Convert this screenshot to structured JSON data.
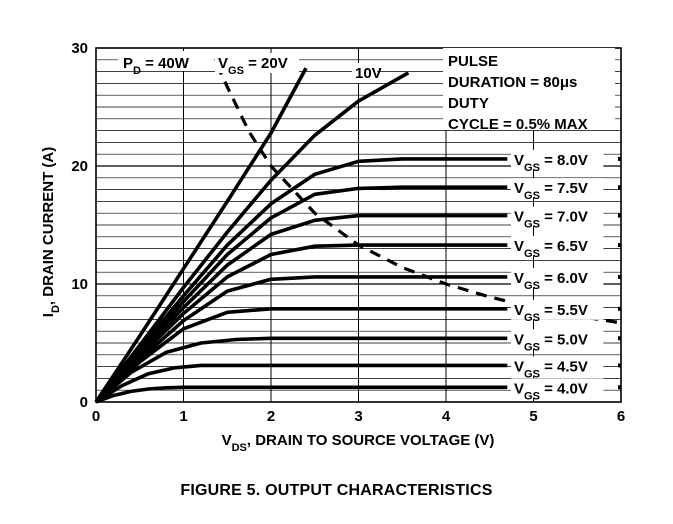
{
  "caption": "FIGURE 5.  OUTPUT CHARACTERISTICS",
  "chart_data": {
    "type": "line",
    "xlabel": "V_DS, DRAIN TO SOURCE VOLTAGE (V)",
    "ylabel": "I_D, DRAIN CURRENT (A)",
    "xlim": [
      0,
      6
    ],
    "ylim": [
      0,
      30
    ],
    "xticks": [
      0,
      1,
      2,
      3,
      4,
      5,
      6
    ],
    "yticks": [
      0,
      10,
      20,
      30
    ],
    "grid": true,
    "annotations": {
      "pulse": [
        "PULSE",
        "DURATION = 80μs",
        "DUTY",
        "CYCLE = 0.5% MAX"
      ],
      "pd_label": "P_D = 40W"
    },
    "series": [
      {
        "name": "V_GS = 20V",
        "label": "V_GS = 20V",
        "style": "solid",
        "points": [
          [
            0,
            0
          ],
          [
            0.5,
            5.6
          ],
          [
            1,
            11.3
          ],
          [
            1.5,
            17.0
          ],
          [
            2,
            22.8
          ],
          [
            2.4,
            28.3
          ]
        ]
      },
      {
        "name": "10V",
        "label": "10V",
        "style": "solid",
        "points": [
          [
            0,
            0
          ],
          [
            0.5,
            4.8
          ],
          [
            1,
            9.7
          ],
          [
            1.5,
            14.4
          ],
          [
            2,
            18.8
          ],
          [
            2.5,
            22.6
          ],
          [
            3,
            25.5
          ],
          [
            3.57,
            27.9
          ]
        ]
      },
      {
        "name": "V_GS = 8.0V",
        "label": "V_GS = 8.0V",
        "style": "solid",
        "points": [
          [
            0,
            0
          ],
          [
            0.5,
            4.5
          ],
          [
            1,
            9.0
          ],
          [
            1.5,
            13.3
          ],
          [
            2,
            16.8
          ],
          [
            2.5,
            19.3
          ],
          [
            3,
            20.4
          ],
          [
            3.5,
            20.6
          ],
          [
            4.7,
            20.6
          ]
        ]
      },
      {
        "name": "V_GS = 7.5V",
        "label": "V_GS = 7.5V",
        "style": "solid",
        "points": [
          [
            0,
            0
          ],
          [
            0.5,
            4.3
          ],
          [
            1,
            8.5
          ],
          [
            1.5,
            12.5
          ],
          [
            2,
            15.6
          ],
          [
            2.5,
            17.6
          ],
          [
            3,
            18.1
          ],
          [
            3.5,
            18.2
          ],
          [
            4.7,
            18.2
          ]
        ]
      },
      {
        "name": "V_GS = 7.0V",
        "label": "V_GS = 7.0V",
        "style": "solid",
        "points": [
          [
            0,
            0
          ],
          [
            0.5,
            4.1
          ],
          [
            1,
            8.0
          ],
          [
            1.5,
            11.6
          ],
          [
            2,
            14.2
          ],
          [
            2.5,
            15.4
          ],
          [
            3,
            15.8
          ],
          [
            4.7,
            15.8
          ]
        ]
      },
      {
        "name": "V_GS = 6.5V",
        "label": "V_GS = 6.5V",
        "style": "solid",
        "points": [
          [
            0,
            0
          ],
          [
            0.5,
            3.9
          ],
          [
            1,
            7.5
          ],
          [
            1.5,
            10.6
          ],
          [
            2,
            12.5
          ],
          [
            2.5,
            13.2
          ],
          [
            3,
            13.3
          ],
          [
            4.7,
            13.3
          ]
        ]
      },
      {
        "name": "V_GS = 6.0V",
        "label": "V_GS = 6.0V",
        "style": "solid",
        "points": [
          [
            0,
            0
          ],
          [
            0.5,
            3.6
          ],
          [
            1,
            6.9
          ],
          [
            1.5,
            9.4
          ],
          [
            2,
            10.4
          ],
          [
            2.5,
            10.6
          ],
          [
            4.7,
            10.6
          ]
        ]
      },
      {
        "name": "V_GS = 5.5V",
        "label": "V_GS = 5.5V",
        "style": "solid",
        "points": [
          [
            0,
            0
          ],
          [
            0.5,
            3.4
          ],
          [
            1,
            6.2
          ],
          [
            1.5,
            7.6
          ],
          [
            2,
            7.9
          ],
          [
            4.7,
            7.9
          ]
        ]
      },
      {
        "name": "V_GS = 5.0V",
        "label": "V_GS = 5.0V",
        "style": "solid",
        "points": [
          [
            0,
            0
          ],
          [
            0.4,
            2.5
          ],
          [
            0.8,
            4.2
          ],
          [
            1.2,
            5.0
          ],
          [
            1.6,
            5.3
          ],
          [
            2,
            5.4
          ],
          [
            4.7,
            5.4
          ]
        ]
      },
      {
        "name": "V_GS = 4.5V",
        "label": "V_GS = 4.5V",
        "style": "solid",
        "points": [
          [
            0,
            0
          ],
          [
            0.3,
            1.4
          ],
          [
            0.6,
            2.4
          ],
          [
            0.9,
            2.9
          ],
          [
            1.2,
            3.1
          ],
          [
            1.6,
            3.1
          ],
          [
            4.7,
            3.1
          ]
        ]
      },
      {
        "name": "V_GS = 4.0V",
        "label": "V_GS = 4.0V",
        "style": "solid",
        "points": [
          [
            0,
            0
          ],
          [
            0.2,
            0.55
          ],
          [
            0.4,
            0.9
          ],
          [
            0.6,
            1.1
          ],
          [
            0.8,
            1.2
          ],
          [
            1.0,
            1.25
          ],
          [
            4.7,
            1.25
          ]
        ]
      },
      {
        "name": "P_D = 40W",
        "label": "",
        "style": "dashed",
        "points": [
          [
            1.38,
            28.6
          ],
          [
            1.5,
            26.7
          ],
          [
            1.75,
            22.9
          ],
          [
            2,
            20.0
          ],
          [
            2.5,
            16.0
          ],
          [
            3,
            13.3
          ],
          [
            3.5,
            11.4
          ],
          [
            4,
            10.0
          ],
          [
            4.5,
            8.9
          ],
          [
            5,
            8.0
          ],
          [
            5.5,
            7.3
          ],
          [
            6,
            6.7
          ]
        ]
      }
    ]
  }
}
